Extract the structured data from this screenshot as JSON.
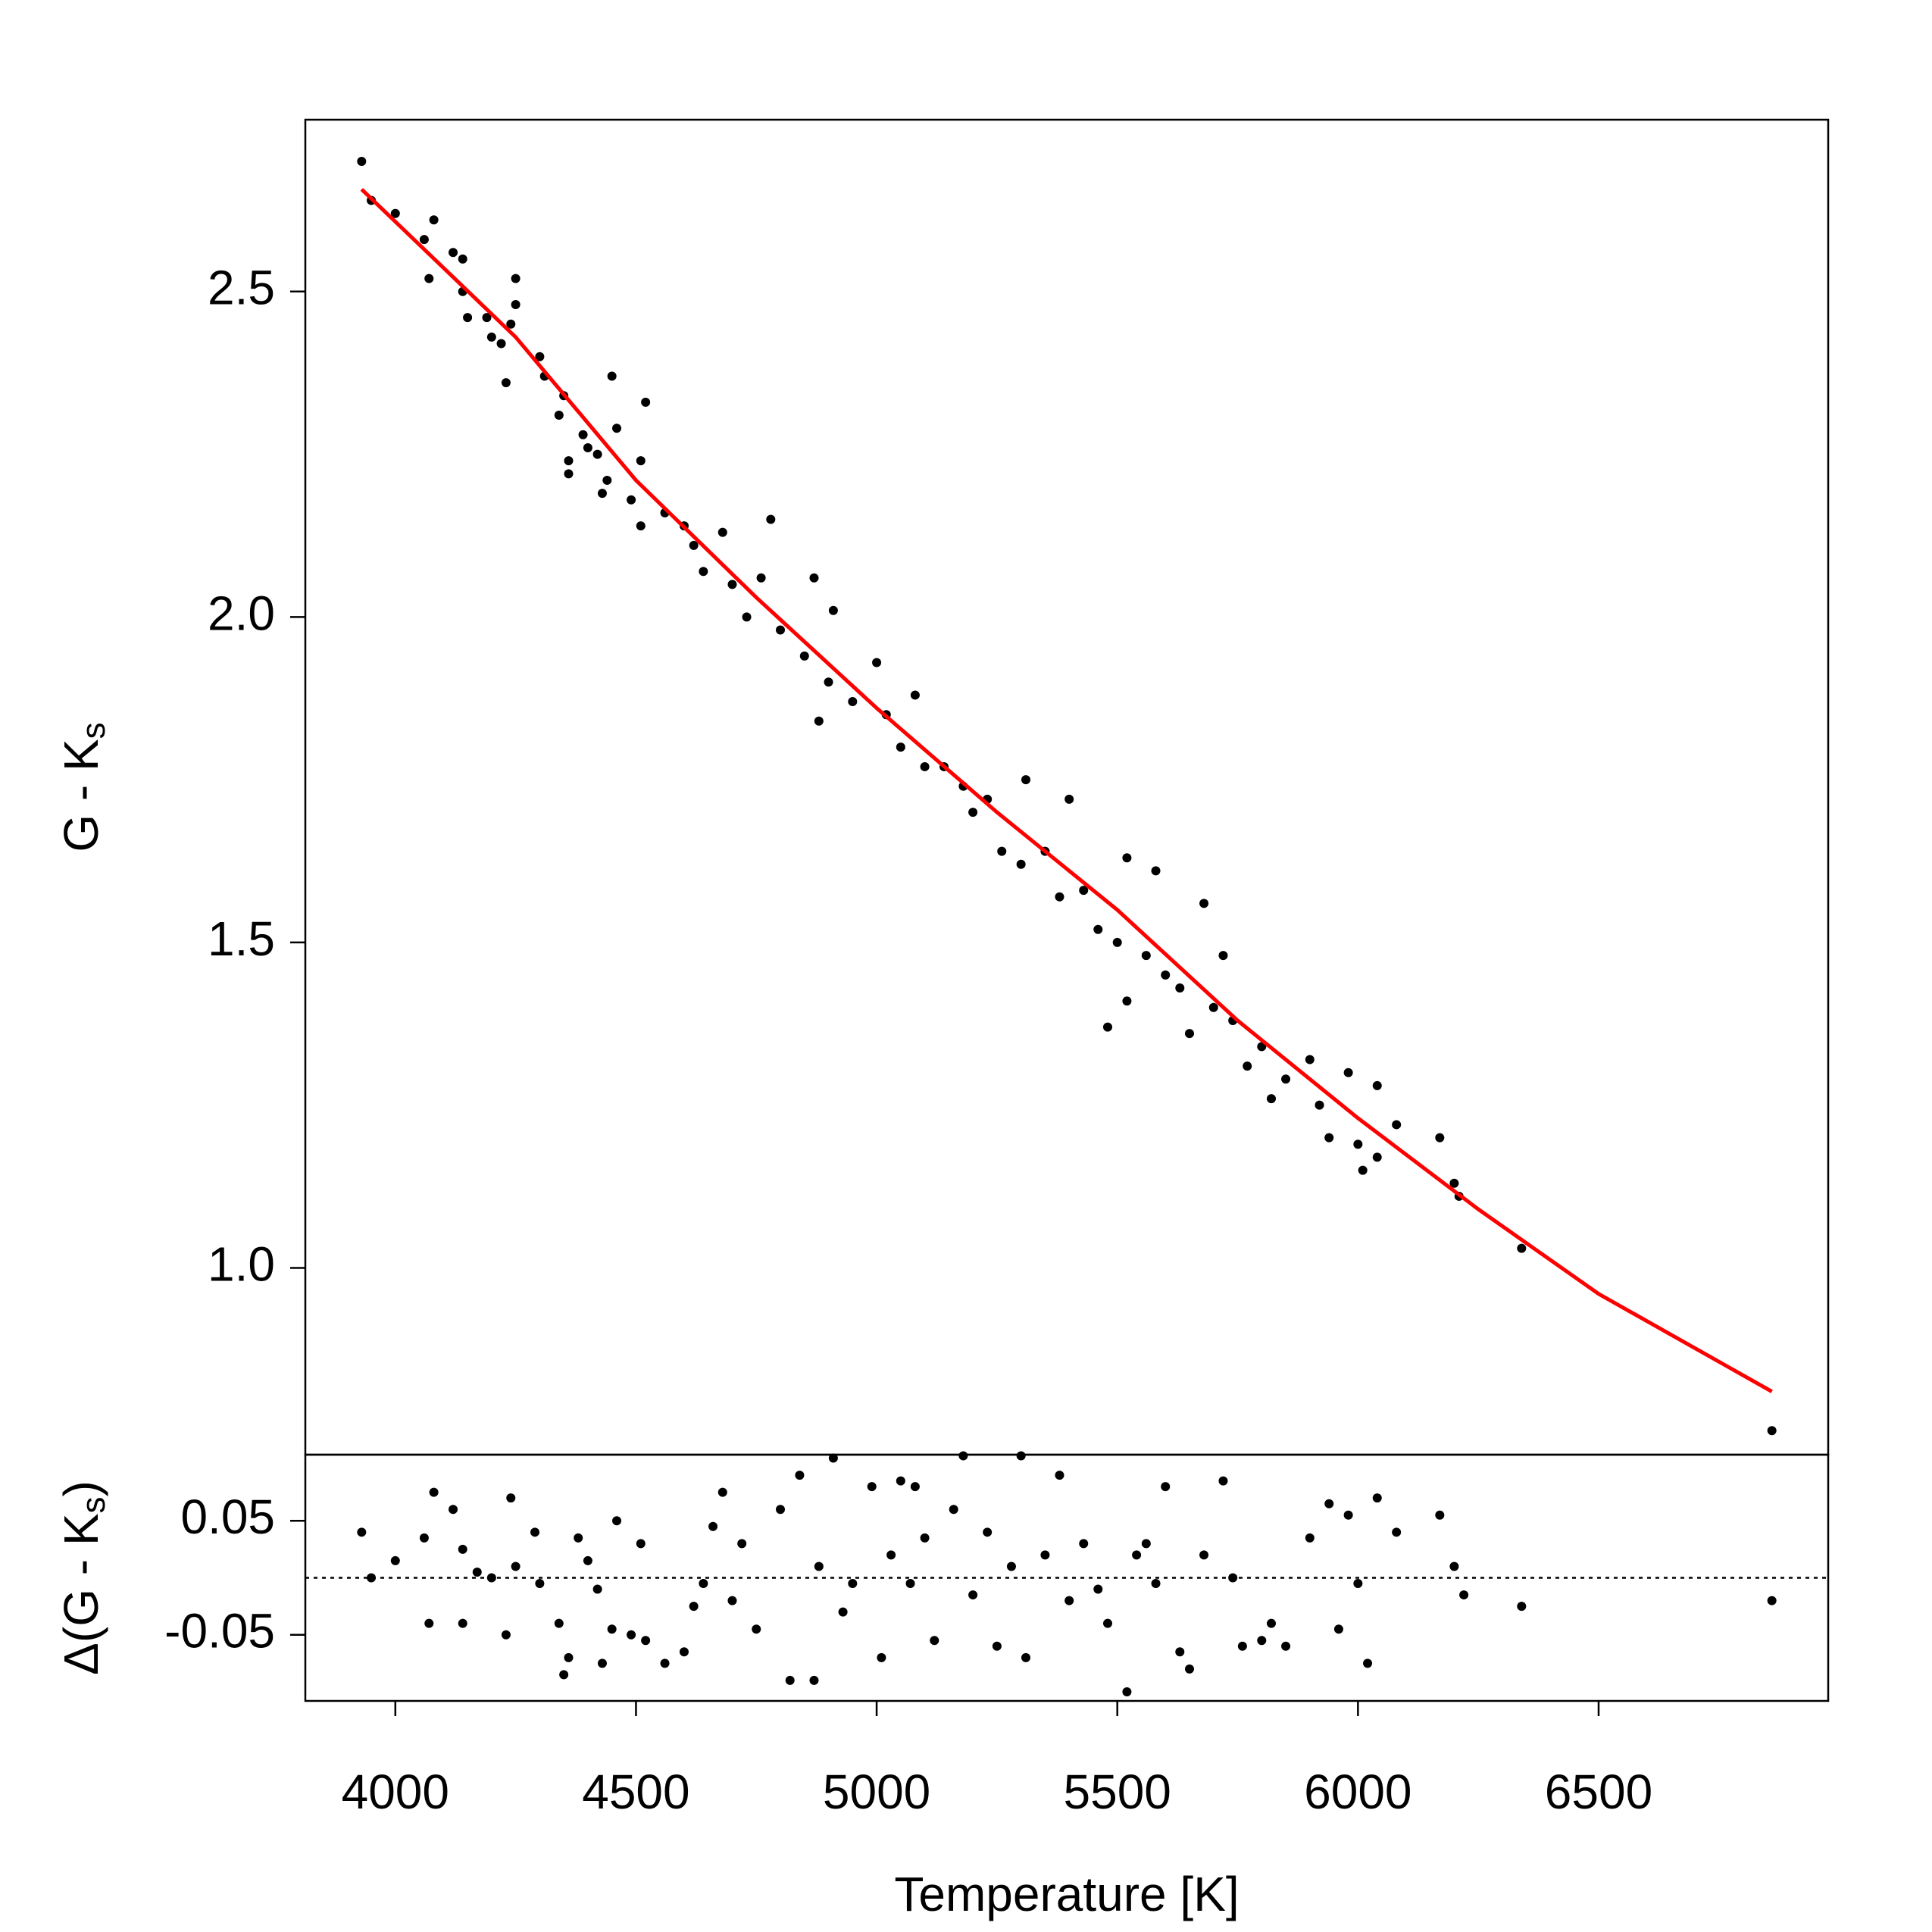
{
  "chart_data": [
    {
      "type": "scatter",
      "y_label": "G - K",
      "y_label_subscript": "s",
      "xlim": [
        3813,
        6977
      ],
      "ylim": [
        0.713,
        2.764
      ],
      "yticks": [
        {
          "value": 1,
          "label": "1.0"
        },
        {
          "value": 1.5,
          "label": "1.5"
        },
        {
          "value": 2,
          "label": "2.0"
        },
        2.5
      ],
      "series": [
        {
          "type": "scatter",
          "color": "#000000",
          "x": [
            3930,
            3950,
            4000,
            4060,
            4070,
            4080,
            4120,
            4140,
            4140,
            4150,
            4190,
            4200,
            4220,
            4230,
            4240,
            4250,
            4250,
            4300,
            4310,
            4340,
            4350,
            4360,
            4360,
            4390,
            4400,
            4420,
            4430,
            4440,
            4450,
            4460,
            4490,
            4510,
            4520,
            4510,
            4560,
            4600,
            4620,
            4640,
            4680,
            4700,
            4730,
            4760,
            4780,
            4800,
            4850,
            4870,
            4880,
            4900,
            4910,
            4950,
            5000,
            5020,
            5050,
            5080,
            5100,
            5140,
            5180,
            5200,
            5230,
            5260,
            5300,
            5310,
            5350,
            5380,
            5400,
            5430,
            5460,
            5480,
            5500,
            5520,
            5520,
            5560,
            5580,
            5600,
            5630,
            5650,
            5680,
            5700,
            5720,
            5740,
            5770,
            5800,
            5820,
            5850,
            5900,
            5920,
            5940,
            5980,
            6000,
            6010,
            6040,
            6040,
            6080,
            6170,
            6200,
            6210,
            6340,
            6860
          ],
          "values": [
            2.7,
            2.64,
            2.62,
            2.58,
            2.52,
            2.61,
            2.56,
            2.55,
            2.5,
            2.46,
            2.46,
            2.43,
            2.42,
            2.36,
            2.45,
            2.52,
            2.48,
            2.4,
            2.37,
            2.31,
            2.34,
            2.22,
            2.24,
            2.28,
            2.26,
            2.25,
            2.19,
            2.21,
            2.37,
            2.29,
            2.18,
            2.24,
            2.33,
            2.14,
            2.16,
            2.14,
            2.11,
            2.07,
            2.13,
            2.05,
            2.0,
            2.06,
            2.15,
            1.98,
            1.94,
            2.06,
            1.84,
            1.9,
            2.01,
            1.87,
            1.93,
            1.85,
            1.8,
            1.88,
            1.77,
            1.77,
            1.74,
            1.7,
            1.72,
            1.64,
            1.62,
            1.75,
            1.64,
            1.57,
            1.72,
            1.58,
            1.52,
            1.37,
            1.5,
            1.41,
            1.63,
            1.48,
            1.61,
            1.45,
            1.43,
            1.36,
            1.56,
            1.4,
            1.48,
            1.38,
            1.31,
            1.34,
            1.26,
            1.29,
            1.32,
            1.25,
            1.2,
            1.3,
            1.19,
            1.15,
            1.17,
            1.28,
            1.22,
            1.2,
            1.13,
            1.11,
            1.03,
            0.75
          ]
        },
        {
          "type": "line",
          "color": "#ff0000",
          "x": [
            3930,
            4250,
            4500,
            4750,
            5000,
            5250,
            5500,
            5750,
            6000,
            6250,
            6500,
            6860
          ],
          "values": [
            2.657,
            2.43,
            2.21,
            2.03,
            1.86,
            1.7,
            1.55,
            1.38,
            1.23,
            1.09,
            0.96,
            0.81
          ]
        }
      ]
    },
    {
      "type": "scatter",
      "y_label_prefix": "Δ(G - K",
      "y_label_subscript": "s",
      "y_label_suffix": ")",
      "x_label": "Temperature [K]",
      "xlim": [
        3813,
        6977
      ],
      "ylim": [
        -0.108,
        0.108
      ],
      "xticks": [
        4000,
        4500,
        5000,
        5500,
        6000,
        6500
      ],
      "yticks": [
        -0.05,
        0.05
      ],
      "reference_line": {
        "value": 0,
        "style": "dotted"
      },
      "series": [
        {
          "type": "scatter",
          "color": "#000000",
          "x": [
            3930,
            3950,
            4000,
            4060,
            4070,
            4080,
            4120,
            4140,
            4140,
            4170,
            4200,
            4230,
            4240,
            4250,
            4290,
            4300,
            4340,
            4350,
            4360,
            4380,
            4400,
            4420,
            4430,
            4450,
            4460,
            4490,
            4510,
            4520,
            4560,
            4600,
            4620,
            4640,
            4660,
            4680,
            4700,
            4720,
            4750,
            4800,
            4820,
            4840,
            4870,
            4880,
            4910,
            4930,
            4950,
            4990,
            5010,
            5030,
            5050,
            5070,
            5080,
            5100,
            5120,
            5160,
            5180,
            5200,
            5230,
            5250,
            5280,
            5300,
            5310,
            5350,
            5380,
            5400,
            5430,
            5460,
            5480,
            5520,
            5540,
            5560,
            5580,
            5600,
            5630,
            5650,
            5680,
            5720,
            5740,
            5760,
            5800,
            5820,
            5850,
            5900,
            5940,
            5960,
            5980,
            6000,
            6020,
            6040,
            6080,
            6170,
            6200,
            6220,
            6340,
            6860
          ],
          "values": [
            0.04,
            0.0,
            0.015,
            0.035,
            -0.04,
            0.075,
            0.06,
            -0.04,
            0.025,
            0.005,
            0.0,
            -0.05,
            0.07,
            0.01,
            0.04,
            -0.005,
            -0.04,
            -0.085,
            -0.07,
            0.035,
            0.015,
            -0.01,
            -0.075,
            -0.045,
            0.05,
            -0.05,
            0.03,
            -0.055,
            -0.075,
            -0.065,
            -0.025,
            -0.005,
            0.045,
            0.075,
            -0.02,
            0.03,
            -0.045,
            0.06,
            -0.09,
            0.09,
            -0.09,
            0.01,
            0.105,
            -0.03,
            -0.005,
            0.08,
            -0.07,
            0.02,
            0.085,
            -0.005,
            0.08,
            0.035,
            -0.055,
            0.06,
            0.107,
            -0.015,
            0.04,
            -0.06,
            0.01,
            0.107,
            -0.07,
            0.02,
            0.09,
            -0.02,
            0.03,
            -0.01,
            -0.04,
            -0.1,
            0.02,
            0.03,
            -0.005,
            0.08,
            -0.065,
            -0.08,
            0.02,
            0.085,
            0.0,
            -0.06,
            -0.055,
            -0.04,
            -0.06,
            0.035,
            0.065,
            -0.045,
            0.055,
            -0.005,
            -0.075,
            0.07,
            0.04,
            0.055,
            0.01,
            -0.015,
            -0.025,
            -0.02
          ]
        }
      ]
    }
  ]
}
